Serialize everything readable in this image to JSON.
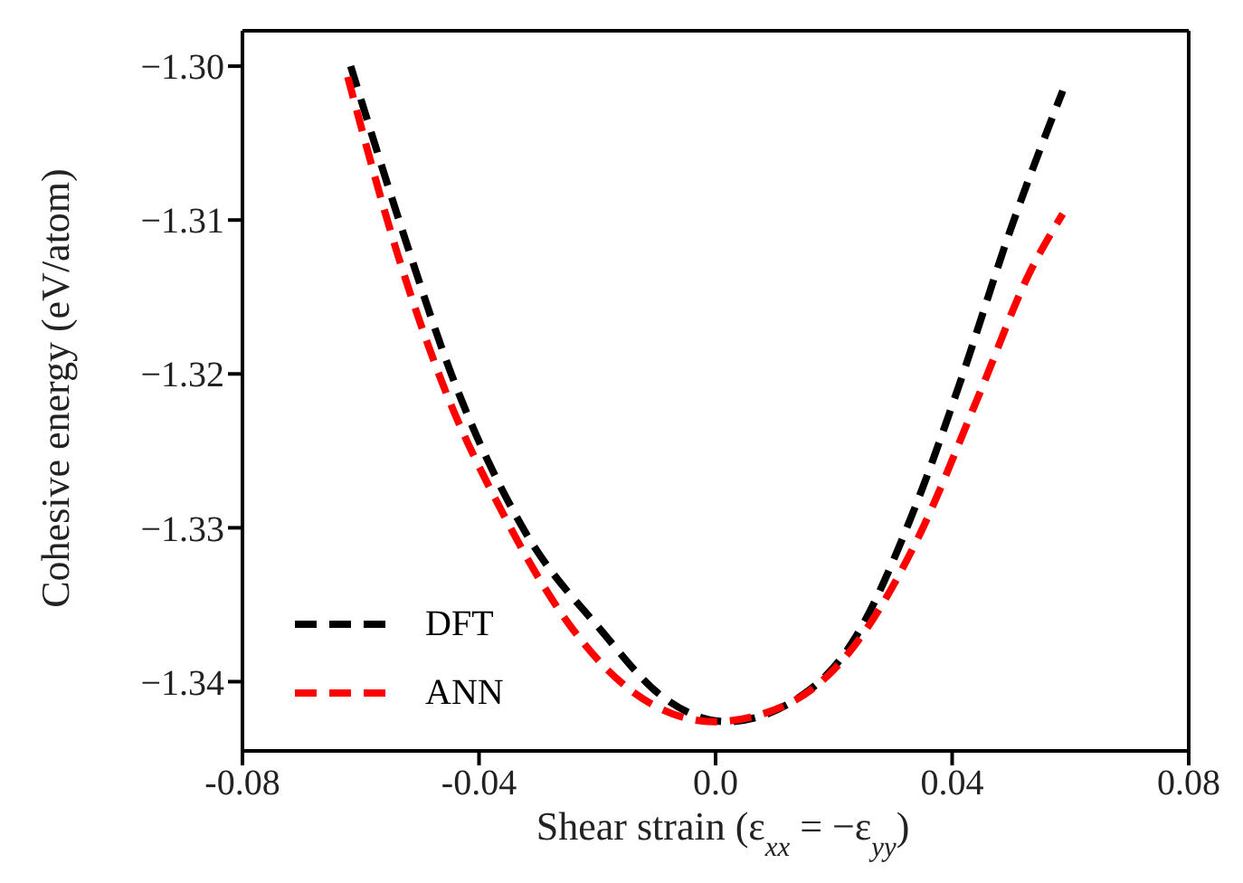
{
  "chart_data": {
    "type": "line",
    "xlabel": "Shear strain (ε$_{xx}$ = −ε$_{yy}$)",
    "ylabel": "Cohesive energy (eV/atom)",
    "xlim": [
      -0.08,
      0.08
    ],
    "xticks": [
      -0.08,
      -0.04,
      {
        "value": 0,
        "label": "0.0"
      },
      0.04,
      0.08
    ],
    "ylim": [
      -1.3445,
      -1.2977
    ],
    "yticks": [
      {
        "value": -1.34,
        "label": "−1.34"
      },
      {
        "value": -1.33,
        "label": "−1.33"
      },
      {
        "value": -1.32,
        "label": "−1.32"
      },
      {
        "value": -1.31,
        "label": "−1.31"
      },
      {
        "value": -1.3,
        "label": "−1.30"
      }
    ],
    "grid": false,
    "legend": "lower left",
    "line_style": "dashed",
    "marker": "none",
    "series": [
      {
        "name": "DFT",
        "color": "#000000",
        "x": [
          -0.0617,
          -0.0526,
          -0.0441,
          -0.0323,
          -0.0195,
          -0.0089,
          0.0018,
          0.0125,
          0.0232,
          0.0338,
          0.0413,
          0.0498,
          0.0587
        ],
        "values": [
          -1.3,
          -1.3111,
          -1.3206,
          -1.3302,
          -1.3366,
          -1.341,
          -1.3426,
          -1.3414,
          -1.3374,
          -1.3286,
          -1.3206,
          -1.3107,
          -1.3016
        ]
      },
      {
        "name": "ANN",
        "color": "#ff0000",
        "x": [
          -0.0622,
          -0.0537,
          -0.0462,
          -0.0355,
          -0.0249,
          -0.0142,
          -0.0003,
          0.0125,
          0.0232,
          0.0338,
          0.0445,
          0.053,
          0.0587
        ],
        "values": [
          -1.3007,
          -1.3123,
          -1.3206,
          -1.3294,
          -1.3362,
          -1.3406,
          -1.3426,
          -1.3414,
          -1.3378,
          -1.331,
          -1.3214,
          -1.3135,
          -1.3096
        ]
      }
    ]
  }
}
